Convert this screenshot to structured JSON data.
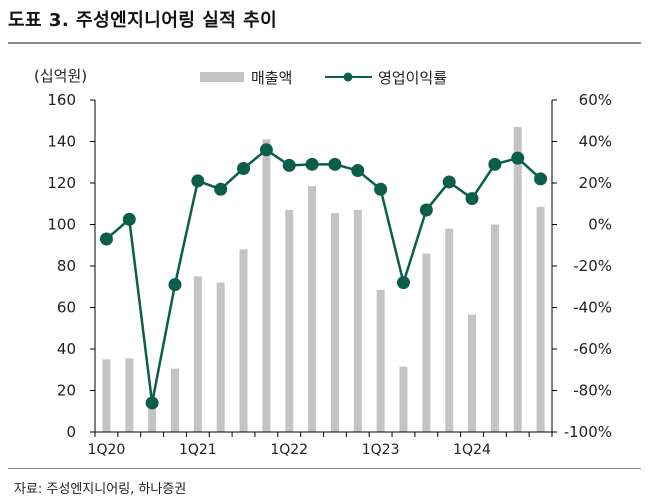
{
  "title": "도표 3. 주성엔지니어링 실적 추이",
  "source": "자료: 주성엔지니어링, 하나증권",
  "colors": {
    "bar": "#c4c4c4",
    "line": "#0b5e4a",
    "axis": "#000000",
    "text": "#222222"
  },
  "chart_data": {
    "type": "bar",
    "title": "",
    "unit_label": "(십억원)",
    "categories": [
      "1Q20",
      "2Q20",
      "3Q20",
      "4Q20",
      "1Q21",
      "2Q21",
      "3Q21",
      "4Q21",
      "1Q22",
      "2Q22",
      "3Q22",
      "4Q22",
      "1Q23",
      "2Q23",
      "3Q23",
      "4Q23",
      "1Q24",
      "2Q24",
      "3Q24",
      "4Q24"
    ],
    "x_tick_labels": [
      "1Q20",
      "1Q21",
      "1Q22",
      "1Q23",
      "1Q24"
    ],
    "series": [
      {
        "name": "매출액",
        "type": "bar",
        "axis": "left",
        "values": [
          35,
          35.5,
          14,
          30.5,
          75,
          72,
          88,
          141,
          107,
          118.5,
          105.5,
          107,
          68.5,
          31.5,
          86,
          98,
          56.5,
          100,
          147,
          108.5
        ]
      },
      {
        "name": "영업이익률",
        "type": "line",
        "axis": "right",
        "values": [
          -7,
          2.5,
          -86,
          -29,
          21,
          17,
          27,
          36,
          28.5,
          29,
          29,
          26,
          17,
          -28,
          7,
          20.5,
          12.5,
          29,
          32,
          22
        ]
      }
    ],
    "y_left": {
      "min": 0,
      "max": 160,
      "ticks": [
        "0",
        "20",
        "40",
        "60",
        "80",
        "100",
        "120",
        "140",
        "160"
      ]
    },
    "y_right": {
      "min": -100,
      "max": 60,
      "ticks": [
        "-100%",
        "-80%",
        "-60%",
        "-40%",
        "-20%",
        "0%",
        "20%",
        "40%",
        "60%"
      ]
    },
    "legend": {
      "placement": "top-center",
      "bar_label": "매출액",
      "line_label": "영업이익률"
    }
  }
}
